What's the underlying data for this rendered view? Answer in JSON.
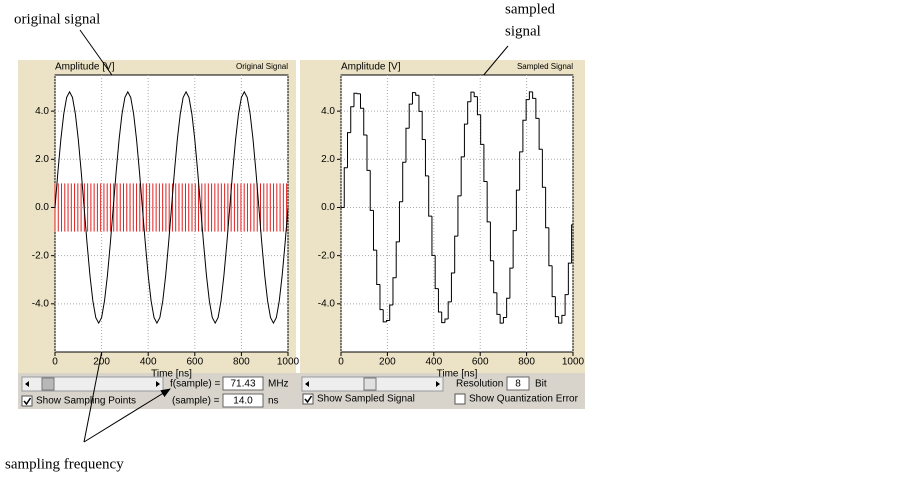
{
  "chart_data": [
    {
      "type": "line",
      "title": "Original Signal",
      "y_label": "Amplitude [V]",
      "x_label": "Time [ns]",
      "x": [
        0,
        12.5,
        25,
        37.5,
        50,
        62.5,
        75,
        87.5,
        100,
        112.5,
        125,
        137.5,
        150,
        162.5,
        175,
        187.5,
        200,
        212.5,
        225,
        237.5,
        250,
        262.5,
        275,
        287.5,
        300,
        312.5,
        325,
        337.5,
        350,
        362.5,
        375,
        387.5,
        400,
        412.5,
        425,
        437.5,
        450,
        462.5,
        475,
        487.5,
        500,
        512.5,
        525,
        537.5,
        550,
        562.5,
        575,
        587.5,
        600,
        612.5,
        625,
        637.5,
        650,
        662.5,
        675,
        687.5,
        700,
        712.5,
        725,
        737.5,
        750,
        762.5,
        775,
        787.5,
        800,
        812.5,
        825,
        837.5,
        850,
        862.5,
        875,
        887.5,
        900,
        912.5,
        925,
        937.5,
        950,
        962.5,
        975,
        987.5,
        1000
      ],
      "values": [
        0,
        1.48,
        2.82,
        3.88,
        4.57,
        4.8,
        4.57,
        3.88,
        2.82,
        1.48,
        0,
        -1.48,
        -2.82,
        -3.88,
        -4.57,
        -4.8,
        -4.57,
        -3.88,
        -2.82,
        -1.48,
        0,
        1.48,
        2.82,
        3.88,
        4.57,
        4.8,
        4.57,
        3.88,
        2.82,
        1.48,
        0,
        -1.48,
        -2.82,
        -3.88,
        -4.57,
        -4.8,
        -4.57,
        -3.88,
        -2.82,
        -1.48,
        0,
        1.48,
        2.82,
        3.88,
        4.57,
        4.8,
        4.57,
        3.88,
        2.82,
        1.48,
        0,
        -1.48,
        -2.82,
        -3.88,
        -4.57,
        -4.8,
        -4.57,
        -3.88,
        -2.82,
        -1.48,
        0,
        1.48,
        2.82,
        3.88,
        4.57,
        4.8,
        4.57,
        3.88,
        2.82,
        1.48,
        0,
        -1.48,
        -2.82,
        -3.88,
        -4.57,
        -4.8,
        -4.57,
        -3.88,
        -2.82,
        -1.48,
        0
      ],
      "color": "#000000",
      "sampling_points": {
        "x": [
          0,
          14,
          28,
          42,
          56,
          70,
          84,
          98,
          112,
          126,
          140,
          154,
          168,
          182,
          196,
          210,
          224,
          238,
          252,
          266,
          280,
          294,
          308,
          322,
          336,
          350,
          364,
          378,
          392,
          406,
          420,
          434,
          448,
          462,
          476,
          490,
          504,
          518,
          532,
          546,
          560,
          574,
          588,
          602,
          616,
          630,
          644,
          658,
          672,
          686,
          700,
          714,
          728,
          742,
          756,
          770,
          784,
          798,
          812,
          826,
          840,
          854,
          868,
          882,
          896,
          910,
          924,
          938,
          952,
          966,
          980,
          994
        ],
        "low": -1,
        "high": 1,
        "color": "#e02020"
      },
      "xlim": [
        0,
        1000
      ],
      "ylim": [
        -6,
        5.5
      ],
      "xticks": [
        0,
        200,
        400,
        600,
        800,
        1000
      ],
      "yticks": [
        {
          "value": -4,
          "label": "-4.0"
        },
        {
          "value": -2,
          "label": "-2.0"
        },
        {
          "value": 0,
          "label": "0.0"
        },
        {
          "value": 2,
          "label": "2.0"
        },
        {
          "value": 4,
          "label": "4.0"
        }
      ],
      "grid": true
    },
    {
      "type": "step",
      "title": "Sampled Signal",
      "y_label": "Amplitude [V]",
      "x_label": "Time [ns]",
      "x": [
        0,
        14,
        28,
        42,
        56,
        70,
        84,
        98,
        112,
        126,
        140,
        154,
        168,
        182,
        196,
        210,
        224,
        238,
        252,
        266,
        280,
        294,
        308,
        322,
        336,
        350,
        364,
        378,
        392,
        406,
        420,
        434,
        448,
        462,
        476,
        490,
        504,
        518,
        532,
        546,
        560,
        574,
        588,
        602,
        616,
        630,
        644,
        658,
        672,
        686,
        700,
        714,
        728,
        742,
        756,
        770,
        784,
        798,
        812,
        826,
        840,
        854,
        868,
        882,
        896,
        910,
        924,
        938,
        952,
        966,
        980,
        994
      ],
      "values": [
        0,
        1.65,
        3.11,
        4.18,
        4.74,
        4.72,
        4.12,
        3.01,
        1.54,
        -0.12,
        -1.77,
        -3.2,
        -4.24,
        -4.75,
        -4.69,
        -4.05,
        -2.92,
        -1.43,
        0.24,
        1.88,
        3.29,
        4.29,
        4.77,
        4.66,
        3.99,
        2.82,
        1.31,
        -0.36,
        -1.99,
        -3.37,
        -4.34,
        -4.78,
        -4.63,
        -3.92,
        -2.72,
        -1.19,
        0.48,
        2.1,
        3.46,
        4.39,
        4.79,
        4.6,
        3.85,
        2.62,
        1.08,
        -0.6,
        -2.21,
        -3.54,
        -4.44,
        -4.8,
        -4.57,
        -3.77,
        -2.52,
        -0.96,
        0.72,
        2.31,
        3.62,
        4.48,
        4.8,
        4.53,
        3.7,
        2.42,
        0.84,
        -0.84,
        -2.42,
        -3.7,
        -4.53,
        -4.8,
        -4.48,
        -3.62,
        -2.31,
        -0.72
      ],
      "color": "#000000",
      "xlim": [
        0,
        1000
      ],
      "ylim": [
        -6,
        5.5
      ],
      "xticks": [
        0,
        200,
        400,
        600,
        800,
        1000
      ],
      "yticks": [
        {
          "value": -4,
          "label": "-4.0"
        },
        {
          "value": -2,
          "label": "-2.0"
        },
        {
          "value": 0,
          "label": "0.0"
        },
        {
          "value": 2,
          "label": "2.0"
        },
        {
          "value": 4,
          "label": "4.0"
        }
      ],
      "grid": true
    }
  ],
  "annotations": {
    "original": "original signal",
    "sampled_1": "sampled",
    "sampled_2": "signal",
    "frequency": "sampling frequency"
  },
  "controls": {
    "f_label": "f(sample) =",
    "f_value": "71.43",
    "f_unit": "MHz",
    "t_label": "(sample) =",
    "t_value": "14.0",
    "t_unit": "ns",
    "show_points": {
      "label": "Show Sampling Points",
      "checked": true
    },
    "resolution_label": "Resolution",
    "resolution_value": "8",
    "resolution_unit": "Bit",
    "show_sampled": {
      "label": "Show Sampled Signal",
      "checked": true
    },
    "show_error": {
      "label": "Show Quantization Error",
      "checked": false
    }
  }
}
